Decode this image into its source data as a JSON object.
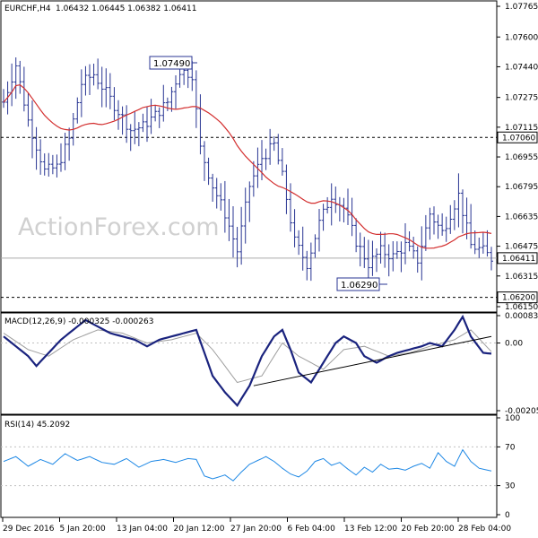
{
  "header": {
    "symbol": "EURCHF,H4",
    "ohlc": "1.06432 1.06445 1.06382 1.06411",
    "macd_label": "MACD(12,26,9) -0.000325 -0.000263",
    "rsi_label": "RSI(14) 45.2092"
  },
  "watermark": "ActionForex.com",
  "colors": {
    "background": "#ffffff",
    "grid": "#c0c0c0",
    "price_bar": "#283593",
    "moving_average": "#d32f2f",
    "macd_line": "#1a237e",
    "signal_line": "#9e9e9e",
    "rsi_line": "#1e88e5",
    "trendline": "#000000"
  },
  "chart_data": [
    {
      "type": "ohlc",
      "title": "EURCHF,H4",
      "x_tick_labels": [
        "29 Dec 2016",
        "5 Jan 20:00",
        "13 Jan 04:00",
        "20 Jan 12:00",
        "27 Jan 20:00",
        "6 Feb 04:00",
        "13 Feb 12:00",
        "20 Feb 20:00",
        "28 Feb 04:00"
      ],
      "y_tick_labels": [
        "1.07765",
        "1.07600",
        "1.07440",
        "1.07275",
        "1.07115",
        "1.06955",
        "1.06795",
        "1.06635",
        "1.06475",
        "1.06315",
        "1.06150"
      ],
      "ylim": [
        1.0615,
        1.0777
      ],
      "last_price": "1.06411",
      "overlay": "moving average (red)",
      "annotations": {
        "high_label": "1.07490",
        "low_label": "1.06290",
        "resistance": "1.07060",
        "support": "1.06200"
      },
      "anchors": [
        [
          0,
          1.0725
        ],
        [
          3,
          1.0745
        ],
        [
          6,
          1.0715
        ],
        [
          10,
          1.0688
        ],
        [
          13,
          1.069
        ],
        [
          16,
          1.0705
        ],
        [
          19,
          1.0735
        ],
        [
          22,
          1.074
        ],
        [
          25,
          1.073
        ],
        [
          28,
          1.072
        ],
        [
          31,
          1.071
        ],
        [
          34,
          1.0712
        ],
        [
          37,
          1.0718
        ],
        [
          40,
          1.0725
        ],
        [
          43,
          1.0742
        ],
        [
          46,
          1.074
        ],
        [
          48,
          1.07
        ],
        [
          51,
          1.068
        ],
        [
          54,
          1.0665
        ],
        [
          57,
          1.0645
        ],
        [
          60,
          1.068
        ],
        [
          63,
          1.0695
        ],
        [
          66,
          1.0702
        ],
        [
          68,
          1.0685
        ],
        [
          71,
          1.065
        ],
        [
          74,
          1.0638
        ],
        [
          77,
          1.066
        ],
        [
          80,
          1.0675
        ],
        [
          83,
          1.0668
        ],
        [
          86,
          1.065
        ],
        [
          89,
          1.0638
        ],
        [
          92,
          1.0645
        ],
        [
          95,
          1.0642
        ],
        [
          98,
          1.0648
        ],
        [
          101,
          1.064
        ],
        [
          104,
          1.0665
        ],
        [
          107,
          1.0655
        ],
        [
          110,
          1.067
        ],
        [
          111,
          1.0675
        ],
        [
          114,
          1.0648
        ],
        [
          117,
          1.0645
        ],
        [
          119,
          1.0641
        ]
      ]
    },
    {
      "type": "line",
      "title": "MACD(12,26,9) -0.000325 -0.000263",
      "y_tick_labels": [
        "0.000833",
        "0.00",
        "-0.002059"
      ],
      "ylim": [
        -0.002059,
        0.000833
      ],
      "series": [
        {
          "name": "MACD",
          "points": [
            [
              0,
              0.0002
            ],
            [
              3,
              -0.0001
            ],
            [
              6,
              -0.0004
            ],
            [
              8,
              -0.0007
            ],
            [
              11,
              -0.0003
            ],
            [
              14,
              0.0001
            ],
            [
              17,
              0.0004
            ],
            [
              20,
              0.0007
            ],
            [
              23,
              0.0005
            ],
            [
              26,
              0.0003
            ],
            [
              29,
              0.0002
            ],
            [
              32,
              0.0001
            ],
            [
              35,
              -0.0001
            ],
            [
              38,
              0.0001
            ],
            [
              41,
              0.0002
            ],
            [
              44,
              0.0003
            ],
            [
              47,
              0.0004
            ],
            [
              49,
              -0.0003
            ],
            [
              51,
              -0.001
            ],
            [
              54,
              -0.0015
            ],
            [
              57,
              -0.0019
            ],
            [
              60,
              -0.0013
            ],
            [
              63,
              -0.0004
            ],
            [
              66,
              0.0002
            ],
            [
              68,
              0.0004
            ],
            [
              70,
              -0.0002
            ],
            [
              72,
              -0.0009
            ],
            [
              75,
              -0.0012
            ],
            [
              78,
              -0.0006
            ],
            [
              81,
              0.0
            ],
            [
              83,
              0.0002
            ],
            [
              86,
              0.0
            ],
            [
              88,
              -0.0004
            ],
            [
              91,
              -0.0006
            ],
            [
              94,
              -0.0004
            ],
            [
              96,
              -0.0003
            ],
            [
              99,
              -0.0002
            ],
            [
              102,
              -0.0001
            ],
            [
              104,
              0.0
            ],
            [
              107,
              -0.0001
            ],
            [
              110,
              0.0004
            ],
            [
              112,
              0.0008
            ],
            [
              114,
              0.0002
            ],
            [
              117,
              -0.0003
            ],
            [
              119,
              -0.000325
            ]
          ]
        },
        {
          "name": "Signal",
          "points": [
            [
              0,
              0.0003
            ],
            [
              6,
              -0.0002
            ],
            [
              11,
              -0.0004
            ],
            [
              17,
              0.0001
            ],
            [
              23,
              0.0004
            ],
            [
              29,
              0.0003
            ],
            [
              35,
              0.0
            ],
            [
              41,
              0.0001
            ],
            [
              47,
              0.0003
            ],
            [
              51,
              -0.0002
            ],
            [
              57,
              -0.0012
            ],
            [
              63,
              -0.001
            ],
            [
              68,
              0.0
            ],
            [
              72,
              -0.0004
            ],
            [
              78,
              -0.0008
            ],
            [
              83,
              -0.0002
            ],
            [
              88,
              -0.0001
            ],
            [
              94,
              -0.0004
            ],
            [
              99,
              -0.0003
            ],
            [
              104,
              -0.0001
            ],
            [
              110,
              0.0001
            ],
            [
              114,
              0.0004
            ],
            [
              119,
              -0.000263
            ]
          ]
        }
      ],
      "trendline": {
        "from": [
          61,
          -0.0013
        ],
        "to": [
          119,
          0.0002
        ]
      }
    },
    {
      "type": "line",
      "title": "RSI(14) 45.2092",
      "y_tick_labels": [
        "100",
        "70",
        "30",
        "0"
      ],
      "ylim": [
        0,
        100
      ],
      "levels": [
        70,
        30
      ],
      "series": [
        {
          "name": "RSI",
          "points": [
            [
              0,
              55
            ],
            [
              3,
              60
            ],
            [
              6,
              50
            ],
            [
              9,
              57
            ],
            [
              12,
              52
            ],
            [
              15,
              63
            ],
            [
              18,
              56
            ],
            [
              21,
              60
            ],
            [
              24,
              54
            ],
            [
              27,
              52
            ],
            [
              30,
              58
            ],
            [
              33,
              49
            ],
            [
              36,
              55
            ],
            [
              39,
              57
            ],
            [
              42,
              54
            ],
            [
              45,
              58
            ],
            [
              47,
              57
            ],
            [
              49,
              40
            ],
            [
              51,
              37
            ],
            [
              54,
              41
            ],
            [
              56,
              35
            ],
            [
              58,
              44
            ],
            [
              60,
              52
            ],
            [
              62,
              56
            ],
            [
              64,
              60
            ],
            [
              66,
              55
            ],
            [
              68,
              48
            ],
            [
              70,
              42
            ],
            [
              72,
              39
            ],
            [
              74,
              45
            ],
            [
              76,
              55
            ],
            [
              78,
              58
            ],
            [
              80,
              51
            ],
            [
              82,
              54
            ],
            [
              84,
              47
            ],
            [
              86,
              41
            ],
            [
              88,
              49
            ],
            [
              90,
              44
            ],
            [
              92,
              52
            ],
            [
              94,
              47
            ],
            [
              96,
              48
            ],
            [
              98,
              46
            ],
            [
              100,
              50
            ],
            [
              102,
              53
            ],
            [
              104,
              48
            ],
            [
              106,
              64
            ],
            [
              108,
              55
            ],
            [
              110,
              50
            ],
            [
              112,
              67
            ],
            [
              114,
              55
            ],
            [
              116,
              48
            ],
            [
              119,
              45.2
            ]
          ]
        }
      ]
    }
  ]
}
